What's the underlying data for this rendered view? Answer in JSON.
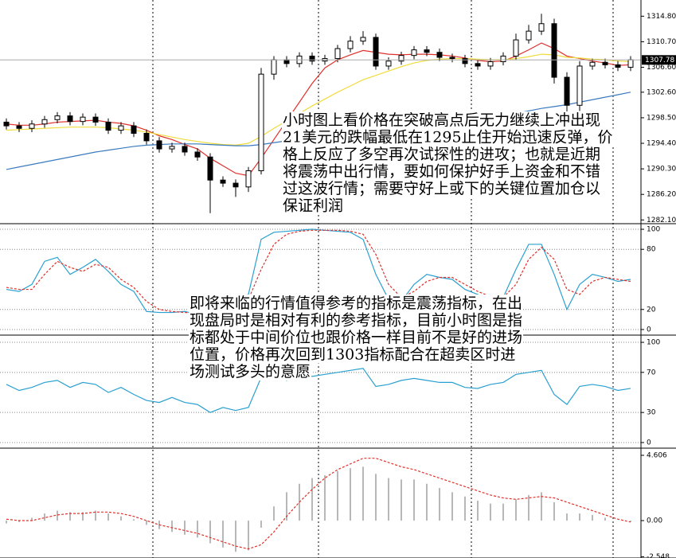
{
  "chart_data": [
    {
      "type": "candlestick",
      "open": [
        1297.8,
        1297.2,
        1296.8,
        1297.5,
        1298.2,
        1298.8,
        1297.9,
        1298.6,
        1297.8,
        1296.5,
        1297.2,
        1296.0,
        1294.8,
        1293.5,
        1293.9,
        1293.0,
        1292.2,
        1288.5,
        1288.0,
        1287.4,
        1290.0,
        1305.5,
        1307.8,
        1307.2,
        1308.4,
        1307.6,
        1308.0,
        1309.6,
        1310.8,
        1311.4,
        1306.8,
        1307.6,
        1308.5,
        1309.4,
        1309.0,
        1308.2,
        1308.0,
        1307.2,
        1306.8,
        1307.5,
        1308.4,
        1311.0,
        1312.4,
        1313.6,
        1305.0,
        1300.5,
        1306.8,
        1307.4,
        1307.0,
        1306.6
      ],
      "high": [
        1298.4,
        1297.8,
        1298.1,
        1298.8,
        1299.4,
        1299.4,
        1299.2,
        1299.2,
        1298.4,
        1297.8,
        1297.8,
        1296.6,
        1295.4,
        1294.5,
        1294.5,
        1293.6,
        1292.8,
        1289.1,
        1288.6,
        1290.6,
        1306.5,
        1308.4,
        1308.4,
        1309.0,
        1309.0,
        1308.6,
        1310.2,
        1311.6,
        1312.4,
        1312.0,
        1308.2,
        1309.1,
        1310.0,
        1310.0,
        1309.6,
        1308.8,
        1308.6,
        1307.8,
        1308.1,
        1309.0,
        1312.0,
        1313.4,
        1315.2,
        1314.4,
        1305.8,
        1307.6,
        1308.0,
        1308.0,
        1307.6,
        1308.4
      ],
      "low": [
        1296.6,
        1296.2,
        1296.2,
        1296.9,
        1297.6,
        1297.3,
        1297.3,
        1297.2,
        1295.9,
        1295.9,
        1295.4,
        1294.2,
        1292.9,
        1292.9,
        1292.4,
        1291.6,
        1283.2,
        1287.4,
        1285.8,
        1286.6,
        1289.4,
        1304.6,
        1306.6,
        1306.6,
        1307.0,
        1307.0,
        1307.4,
        1309.0,
        1310.2,
        1306.2,
        1306.2,
        1307.0,
        1307.9,
        1308.4,
        1307.6,
        1307.4,
        1306.6,
        1306.2,
        1306.2,
        1306.9,
        1307.8,
        1310.4,
        1311.8,
        1304.0,
        1298.0,
        1299.6,
        1306.2,
        1306.4,
        1306.0,
        1306.0
      ],
      "close": [
        1297.2,
        1296.8,
        1297.5,
        1298.2,
        1298.8,
        1297.9,
        1298.6,
        1297.8,
        1296.5,
        1297.2,
        1296.0,
        1294.8,
        1293.5,
        1293.9,
        1293.0,
        1292.2,
        1288.5,
        1288.0,
        1287.4,
        1290.0,
        1305.5,
        1307.8,
        1307.2,
        1308.4,
        1307.6,
        1308.0,
        1309.6,
        1310.8,
        1311.4,
        1306.8,
        1307.6,
        1308.5,
        1309.4,
        1309.0,
        1308.2,
        1308.0,
        1307.2,
        1306.8,
        1307.5,
        1308.4,
        1311.0,
        1312.4,
        1313.6,
        1305.0,
        1300.5,
        1306.8,
        1307.4,
        1307.0,
        1306.6,
        1307.8
      ],
      "series": [
        {
          "color": "#e0302a",
          "values": [
            1297.5,
            1297.3,
            1297.3,
            1297.5,
            1297.8,
            1297.9,
            1298,
            1298.1,
            1297.8,
            1297.6,
            1297.2,
            1296.5,
            1295.6,
            1295,
            1294.2,
            1293.5,
            1292,
            1290.8,
            1289.6,
            1289.2,
            1292,
            1295,
            1298,
            1301,
            1304,
            1306.5,
            1307.8,
            1308.6,
            1309.3,
            1309,
            1308.7,
            1308.6,
            1308.7,
            1308.7,
            1308.6,
            1308.4,
            1308.1,
            1307.7,
            1307.5,
            1307.6,
            1308.4,
            1309.4,
            1310.5,
            1309.6,
            1308.4,
            1308,
            1307.6,
            1307.3,
            1306.9,
            1307
          ]
        },
        {
          "color": "#f0dc3c",
          "values": [
            1296.5,
            1296.6,
            1296.7,
            1296.8,
            1296.9,
            1297,
            1297,
            1297,
            1296.9,
            1296.7,
            1296.5,
            1296.2,
            1295.8,
            1295.4,
            1295,
            1294.7,
            1294.4,
            1294.2,
            1294.1,
            1294.4,
            1295.5,
            1296.8,
            1298,
            1299.2,
            1300.4,
            1301.5,
            1302.6,
            1303.6,
            1304.6,
            1305.3,
            1306,
            1306.7,
            1307.3,
            1307.7,
            1307.9,
            1308,
            1308,
            1307.9,
            1307.8,
            1307.8,
            1308,
            1308.3,
            1308.7,
            1308.6,
            1308.2,
            1308.1,
            1307.9,
            1307.8,
            1307.6,
            1307.5
          ]
        },
        {
          "color": "#3a7abf",
          "values": [
            1290.2,
            1290.6,
            1291,
            1291.4,
            1291.8,
            1292.2,
            1292.6,
            1293,
            1293.3,
            1293.6,
            1293.9,
            1294.1,
            1294.2,
            1294.3,
            1294.3,
            1294.3,
            1294.2,
            1294.1,
            1294,
            1294,
            1294.2,
            1294.5,
            1294.8,
            1295.1,
            1295.4,
            1295.7,
            1296,
            1296.3,
            1296.6,
            1296.8,
            1297,
            1297.2,
            1297.5,
            1297.7,
            1297.9,
            1298.1,
            1298.3,
            1298.5,
            1298.7,
            1298.9,
            1299.2,
            1299.6,
            1300,
            1300.3,
            1300.6,
            1301,
            1301.4,
            1301.8,
            1302.2,
            1302.6
          ]
        }
      ],
      "last_price": 1307.78,
      "ylim": [
        1281.5,
        1317.4
      ],
      "yticks": [
        {
          "value": 1314.8,
          "label": "1314.80"
        },
        {
          "value": 1310.7,
          "label": "1310.70"
        },
        {
          "value": 1306.6,
          "label": "1306.60"
        },
        {
          "value": 1302.6,
          "label": "1302.60"
        },
        {
          "value": 1298.5,
          "label": "1298.50"
        },
        {
          "value": 1294.4,
          "label": "1294.40"
        },
        {
          "value": 1290.3,
          "label": "1290.30"
        },
        {
          "value": 1286.2,
          "label": "1286.20"
        },
        {
          "value": 1282.1,
          "label": "1282.10"
        }
      ],
      "grid": false,
      "annotation": [
        "小时图上看价格在突破高点后无力继续上冲出现",
        "21美元的跌幅最低在1295止住开始迅速反弹，价",
        "格上反应了多空再次试探性的进攻；也就是近期",
        "将震荡中出行情，要如何保护好手上资金和不错",
        "过这波行情；需要守好上或下的关键位置加仓以",
        "保证利润"
      ]
    },
    {
      "type": "line",
      "series": [
        {
          "color": "#2aa0d0",
          "dash": false,
          "values": [
            40,
            38,
            45,
            68,
            72,
            55,
            62,
            70,
            58,
            45,
            38,
            18,
            17,
            17,
            18,
            15,
            20,
            25,
            30,
            35,
            90,
            97,
            98,
            99,
            100,
            99,
            98,
            97,
            90,
            55,
            30,
            28,
            45,
            55,
            52,
            50,
            40,
            35,
            30,
            32,
            60,
            85,
            85,
            55,
            20,
            45,
            55,
            52,
            48,
            50
          ]
        },
        {
          "color": "#e0302a",
          "dash": true,
          "values": [
            42,
            40,
            40,
            55,
            68,
            62,
            58,
            65,
            62,
            50,
            42,
            28,
            20,
            18,
            17,
            16,
            18,
            22,
            27,
            30,
            60,
            85,
            95,
            98,
            99,
            99,
            99,
            98,
            95,
            75,
            45,
            32,
            38,
            48,
            52,
            52,
            45,
            38,
            33,
            32,
            45,
            70,
            82,
            70,
            40,
            35,
            48,
            52,
            50,
            48
          ]
        }
      ],
      "ylim": [
        -5.6,
        104
      ],
      "yticks": [
        100,
        80,
        20,
        0
      ],
      "grid": true,
      "annotation": [
        "即将来临的行情值得参考的指标是震荡指标，在出",
        "现盘局时是相对有利的参考指标，目前小时图是指",
        "标都处于中间价位也跟价格一样目前不是好的进场",
        "位置，价格再次回到1303指标配合在超卖区时进",
        "场测试多头的意愿"
      ]
    },
    {
      "type": "line",
      "series": [
        {
          "color": "#2aa0d0",
          "dash": false,
          "values": [
            58,
            52,
            55,
            60,
            62,
            55,
            60,
            58,
            50,
            55,
            48,
            42,
            40,
            45,
            40,
            38,
            30,
            35,
            32,
            35,
            65,
            68,
            62,
            70,
            66,
            68,
            70,
            72,
            74,
            56,
            58,
            62,
            64,
            62,
            60,
            60,
            55,
            54,
            58,
            60,
            68,
            70,
            72,
            48,
            38,
            56,
            58,
            56,
            52,
            54
          ]
        }
      ],
      "ylim": [
        -5.6,
        105.6
      ],
      "yticks": [
        100,
        70,
        30,
        0
      ],
      "grid": true
    },
    {
      "type": "macd",
      "values": [
        -0.2,
        -0.1,
        0.2,
        0.5,
        0.7,
        0.6,
        0.6,
        0.7,
        0.5,
        0.3,
        0.1,
        -0.3,
        -0.6,
        -0.8,
        -1,
        -1.2,
        -1.6,
        -1.9,
        -2.2,
        -2.1,
        -0.5,
        1,
        2,
        2.6,
        3,
        3.2,
        3.5,
        3.7,
        3.8,
        3.3,
        3,
        2.9,
        2.9,
        2.6,
        2.3,
        2,
        1.7,
        1.4,
        1.2,
        1.2,
        1.5,
        1.8,
        2,
        1.3,
        0.5,
        0.5,
        0.4,
        0.2,
        0,
        -0.1
      ],
      "color": "#b8b8b8",
      "series": [
        {
          "color": "#e0302a",
          "dash": true,
          "values": [
            0.1,
            0,
            0,
            0.2,
            0.4,
            0.5,
            0.5,
            0.6,
            0.6,
            0.5,
            0.3,
            0,
            -0.3,
            -0.5,
            -0.7,
            -0.9,
            -1.2,
            -1.5,
            -1.8,
            -2,
            -1.7,
            -0.8,
            0.3,
            1.3,
            2.2,
            3,
            3.6,
            4,
            4.4,
            4.4,
            4.1,
            3.8,
            3.6,
            3.3,
            3,
            2.7,
            2.4,
            2.1,
            1.8,
            1.6,
            1.5,
            1.6,
            1.7,
            1.6,
            1.3,
            1,
            0.7,
            0.4,
            0.1,
            -0.1
          ]
        }
      ],
      "ylim": [
        -2.64,
        5.0
      ],
      "yticks": [
        4.606,
        {
          "value": 0,
          "label": "0.00"
        },
        -2.548
      ],
      "grid": false
    }
  ]
}
